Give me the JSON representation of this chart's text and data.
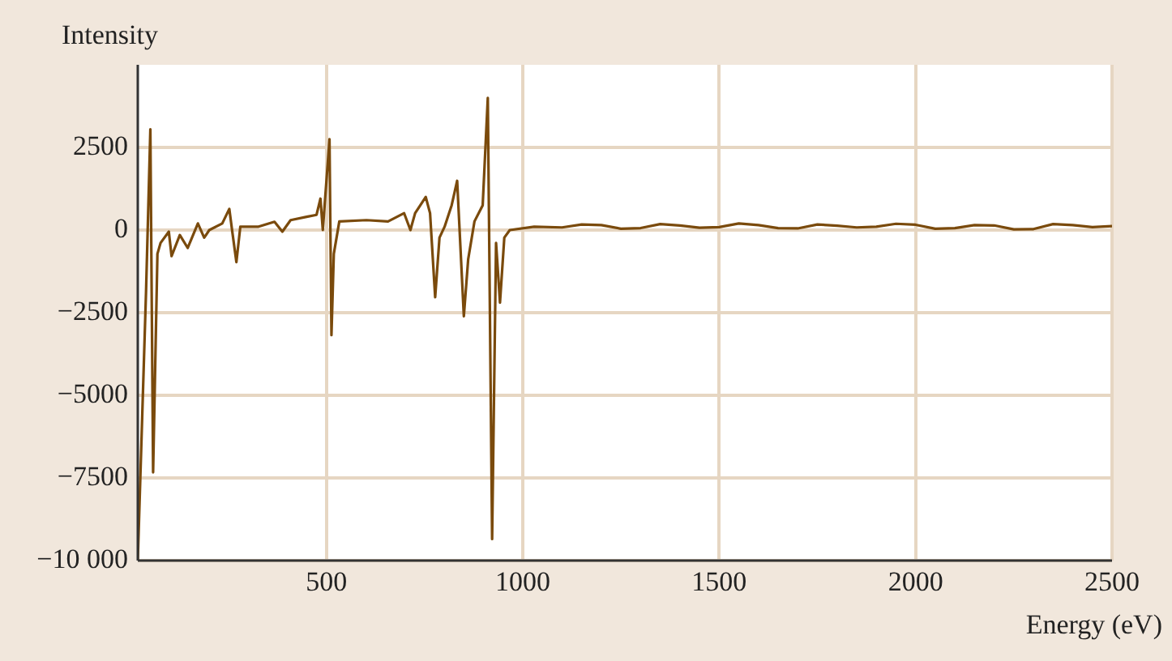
{
  "chart_data": {
    "type": "line",
    "xlabel": "Energy (eV)",
    "ylabel": "Intensity",
    "xlim": [
      20,
      2500
    ],
    "xticks": [
      500,
      1000,
      1500,
      2000,
      2500
    ],
    "ylim": [
      -10000,
      5000
    ],
    "yticks": [
      {
        "value": -10000,
        "label": "−10 000"
      },
      {
        "value": -7500,
        "label": "−7500"
      },
      {
        "value": -5000,
        "label": "−5000"
      },
      {
        "value": -2500,
        "label": "−2500"
      },
      0,
      2500
    ],
    "grid": true,
    "marker": "none",
    "line_style": "solid",
    "series": [
      {
        "color": "#7a4a0c",
        "x": [
          20,
          41,
          52,
          59,
          70,
          78,
          99,
          106,
          127,
          147,
          173,
          189,
          202,
          235,
          253,
          260,
          271,
          281,
          326,
          368,
          388,
          409,
          450,
          475,
          485,
          491,
          508,
          513,
          519,
          533,
          602,
          657,
          698,
          714,
          726,
          753,
          764,
          777,
          788,
          801,
          819,
          833,
          850,
          861,
          877,
          898,
          911,
          922,
          932,
          942,
          953,
          967,
          1029,
          1100,
          1150,
          1200,
          1250,
          1300,
          1350,
          1400,
          1450,
          1500,
          1550,
          1600,
          1650,
          1700,
          1750,
          1800,
          1850,
          1900,
          1950,
          2000,
          2050,
          2100,
          2150,
          2200,
          2250,
          2300,
          2350,
          2400,
          2450,
          2500
        ],
        "values": [
          -10000,
          -1870,
          3050,
          -7330,
          -720,
          -390,
          -50,
          -790,
          -150,
          -540,
          200,
          -230,
          0,
          200,
          640,
          0,
          -970,
          100,
          100,
          250,
          -50,
          300,
          400,
          460,
          950,
          0,
          2750,
          -3180,
          -720,
          260,
          300,
          260,
          510,
          0,
          510,
          1000,
          510,
          -2030,
          -230,
          100,
          750,
          1490,
          -2610,
          -890,
          260,
          750,
          4000,
          -9350,
          -390,
          -2200,
          -230,
          0,
          100,
          80,
          170,
          150,
          40,
          60,
          180,
          140,
          70,
          90,
          200,
          150,
          60,
          50,
          170,
          130,
          80,
          100,
          190,
          160,
          40,
          60,
          150,
          140,
          20,
          30,
          180,
          150,
          90,
          120
        ]
      }
    ]
  }
}
